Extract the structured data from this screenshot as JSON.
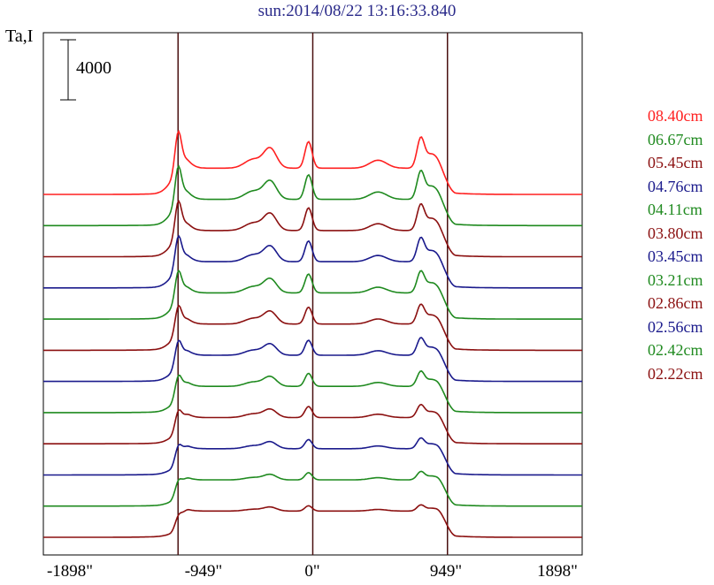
{
  "chart_data": {
    "type": "line",
    "title": "sun:2014/08/22 13:16:33.840",
    "ylabel": "Ta,I",
    "scale_bar_label": "4000",
    "xlim": [
      -1898,
      1898
    ],
    "x_ticks": [
      "-1898\"",
      "-949\"",
      "0\"",
      "949\"",
      "1898\""
    ],
    "x_tick_values": [
      -1898,
      -949,
      0,
      949,
      1898
    ],
    "vertical_lines": [
      -949,
      0,
      949
    ],
    "series": [
      {
        "name": "08.40cm",
        "color": "#ff2020"
      },
      {
        "name": "06.67cm",
        "color": "#1f8a1f"
      },
      {
        "name": "05.45cm",
        "color": "#8b1010"
      },
      {
        "name": "04.76cm",
        "color": "#1a1a8c"
      },
      {
        "name": "04.11cm",
        "color": "#1f8a1f"
      },
      {
        "name": "03.80cm",
        "color": "#8b1010"
      },
      {
        "name": "03.45cm",
        "color": "#1a1a8c"
      },
      {
        "name": "03.21cm",
        "color": "#1f8a1f"
      },
      {
        "name": "02.86cm",
        "color": "#8b1010"
      },
      {
        "name": "02.56cm",
        "color": "#1a1a8c"
      },
      {
        "name": "02.42cm",
        "color": "#1f8a1f"
      },
      {
        "name": "02.22cm",
        "color": "#8b1010"
      }
    ]
  }
}
